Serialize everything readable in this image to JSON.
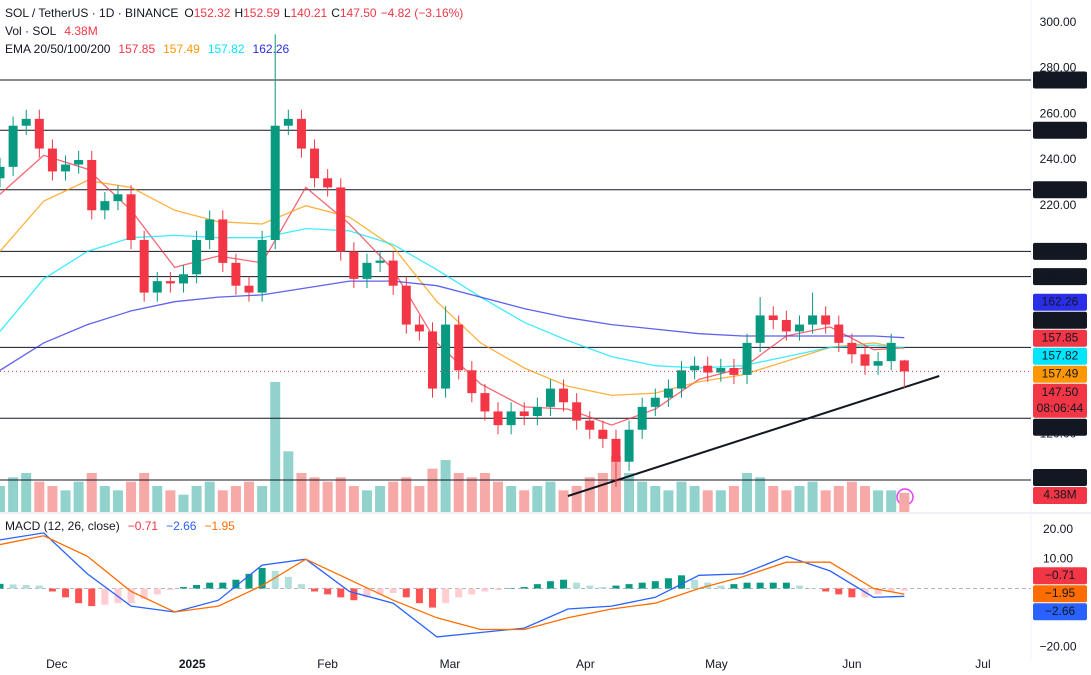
{
  "chart_data": [
    {
      "type": "candlestick",
      "title": "SOL / TetherUS · 1D · BINANCE",
      "ohlc_legend": [
        {
          "label": "O",
          "value": "152.32"
        },
        {
          "label": "H",
          "value": "152.59"
        },
        {
          "label": "L",
          "value": "140.21"
        },
        {
          "label": "C",
          "value": "147.50"
        },
        {
          "value": "−4.82 (−3.16%)"
        }
      ],
      "volume_legend": {
        "label": "Vol · SOL",
        "value": "4.38M"
      },
      "ema_legend": {
        "label": "EMA 20/50/100/200"
      },
      "up_color": "#089981",
      "down_color": "#f23645",
      "x": [
        0,
        3,
        6,
        9,
        12,
        15,
        18,
        21,
        24,
        27,
        30,
        33,
        36,
        39,
        42,
        45,
        48,
        51,
        54,
        57,
        60,
        63,
        66,
        69,
        72,
        75,
        78,
        81,
        84,
        87,
        90,
        93,
        96,
        99,
        102,
        105,
        108,
        111,
        114,
        117,
        120,
        123,
        126,
        129,
        132,
        135,
        138,
        141,
        144,
        147,
        150,
        153,
        156,
        159,
        162,
        165,
        168,
        171,
        174,
        177,
        180,
        183,
        186,
        189,
        192,
        195,
        198,
        201,
        204,
        207
      ],
      "open": [
        232,
        237,
        255,
        258,
        245,
        235,
        238,
        240,
        218,
        222,
        225,
        205,
        182,
        187,
        186,
        190,
        205,
        214,
        195,
        185,
        182,
        205,
        255,
        258,
        245,
        232,
        228,
        200,
        188,
        195,
        196,
        185,
        168,
        165,
        140,
        168,
        148,
        138,
        130,
        124,
        130,
        128,
        132,
        140,
        134,
        126,
        122,
        118,
        108,
        122,
        132,
        136,
        140,
        148,
        150,
        147,
        149,
        146,
        160,
        172,
        170,
        165,
        168,
        172,
        168,
        160,
        155,
        150,
        152,
        152.32
      ],
      "high": [
        241,
        259,
        262,
        262,
        249,
        242,
        244,
        244,
        226,
        229,
        229,
        209,
        191,
        191,
        194,
        209,
        218,
        218,
        199,
        189,
        209,
        295,
        262,
        262,
        249,
        236,
        232,
        204,
        199,
        200,
        200,
        189,
        172,
        169,
        176,
        172,
        152,
        142,
        134,
        134,
        134,
        136,
        144,
        144,
        138,
        130,
        126,
        122,
        126,
        136,
        140,
        144,
        152,
        154,
        154,
        153,
        153,
        164,
        180,
        176,
        174,
        172,
        182,
        176,
        172,
        164,
        159,
        156,
        164,
        152.59
      ],
      "low": [
        228,
        233,
        251,
        241,
        231,
        231,
        234,
        214,
        214,
        218,
        201,
        178,
        178,
        182,
        182,
        186,
        201,
        191,
        181,
        178,
        178,
        201,
        251,
        241,
        228,
        224,
        196,
        184,
        184,
        191,
        181,
        164,
        161,
        136,
        136,
        144,
        134,
        126,
        120,
        120,
        124,
        124,
        128,
        130,
        122,
        118,
        114,
        97,
        104,
        118,
        128,
        132,
        136,
        144,
        143,
        143,
        142,
        142,
        156,
        166,
        161,
        161,
        164,
        164,
        156,
        151,
        146,
        146,
        148,
        140.21
      ],
      "close": [
        237,
        255,
        258,
        245,
        235,
        238,
        240,
        218,
        222,
        225,
        205,
        182,
        187,
        186,
        190,
        205,
        214,
        195,
        185,
        182,
        205,
        255,
        258,
        245,
        232,
        228,
        200,
        188,
        195,
        196,
        185,
        168,
        165,
        140,
        168,
        148,
        138,
        130,
        124,
        130,
        128,
        132,
        140,
        134,
        126,
        122,
        118,
        108,
        122,
        132,
        136,
        140,
        148,
        150,
        147,
        149,
        146,
        160,
        172,
        170,
        165,
        168,
        172,
        168,
        160,
        155,
        150,
        152,
        160,
        147.5
      ],
      "volume": {
        "up_color": "#92d2cc",
        "down_color": "#f7a9a7",
        "values": [
          6,
          8,
          9,
          7,
          6,
          5,
          7,
          9,
          6,
          5,
          7,
          9,
          6,
          5,
          4,
          6,
          7,
          5,
          6,
          7,
          6,
          30,
          14,
          9,
          8,
          7,
          8,
          6,
          5,
          6,
          7,
          8,
          6,
          10,
          12,
          9,
          8,
          9,
          7,
          6,
          5,
          6,
          7,
          5,
          6,
          8,
          9,
          13,
          9,
          7,
          6,
          5,
          7,
          6,
          5,
          5,
          6,
          9,
          8,
          6,
          5,
          6,
          7,
          5,
          6,
          7,
          6,
          5,
          5,
          4.38
        ]
      },
      "ema": [
        {
          "color": "#f23645",
          "label": "157.85",
          "x": [
            0,
            10,
            20,
            30,
            40,
            50,
            60,
            70,
            80,
            90,
            100,
            110,
            120,
            130,
            140,
            150,
            160,
            170,
            180,
            190,
            200,
            207
          ],
          "values": [
            225,
            242,
            236,
            218,
            193,
            198,
            195,
            228,
            212,
            192,
            160,
            142,
            132,
            131,
            124,
            131,
            144,
            149,
            163,
            167,
            157,
            157.85
          ]
        },
        {
          "color": "#ff9800",
          "label": "157.49",
          "x": [
            0,
            10,
            20,
            30,
            40,
            50,
            60,
            70,
            80,
            90,
            100,
            110,
            120,
            130,
            140,
            150,
            160,
            170,
            180,
            190,
            200,
            207
          ],
          "values": [
            200,
            222,
            231,
            228,
            218,
            213,
            212,
            220,
            215,
            202,
            178,
            160,
            149,
            141,
            137,
            138,
            143,
            146,
            152,
            158,
            160,
            157.49
          ]
        },
        {
          "color": "#00e5ff",
          "label": "157.82",
          "x": [
            0,
            10,
            20,
            30,
            40,
            50,
            60,
            70,
            80,
            90,
            100,
            110,
            120,
            130,
            140,
            150,
            160,
            170,
            180,
            190,
            200,
            207
          ],
          "values": [
            165,
            188,
            200,
            206,
            207,
            206,
            206,
            210,
            209,
            203,
            192,
            180,
            169,
            161,
            154,
            150,
            149,
            150,
            154,
            158,
            159,
            157.82
          ]
        },
        {
          "color": "#2a2ee8",
          "label": "162.26",
          "x": [
            0,
            10,
            20,
            30,
            40,
            50,
            60,
            70,
            80,
            90,
            100,
            110,
            120,
            130,
            140,
            150,
            160,
            170,
            180,
            190,
            200,
            207
          ],
          "values": [
            148,
            160,
            168,
            174,
            178,
            180,
            181,
            184,
            187,
            187,
            185,
            180,
            175,
            171,
            168,
            166,
            164,
            163,
            163,
            163,
            163,
            162.26
          ]
        }
      ],
      "levels": [
        {
          "value": 275,
          "label": "275.00"
        },
        {
          "value": 253,
          "label": "253.00"
        },
        {
          "value": 227,
          "label": "227.00"
        },
        {
          "value": 200,
          "label": "200.00"
        },
        {
          "value": 189,
          "label": "189.00"
        },
        {
          "value": 158,
          "label": "158.00"
        },
        {
          "value": 127,
          "label": "127.00"
        },
        {
          "value": 100,
          "label": "100.00"
        }
      ],
      "level_color": "#131722",
      "last_price": {
        "value": 147.5,
        "label": "147.50",
        "countdown": "08:06:44",
        "color": "#f23645"
      },
      "trendline": {
        "color": "#131722",
        "x": [
          130,
          215
        ],
        "values": [
          93,
          145.5
        ]
      },
      "xlim": [
        0,
        236
      ],
      "xticks": [
        {
          "value": 13,
          "label": "Dec"
        },
        {
          "value": 44,
          "label": "2025"
        },
        {
          "value": 75,
          "label": "Feb"
        },
        {
          "value": 103,
          "label": "Mar"
        },
        {
          "value": 134,
          "label": "Apr"
        },
        {
          "value": 164,
          "label": "May"
        },
        {
          "value": 195,
          "label": "Jun"
        },
        {
          "value": 225,
          "label": "Jul"
        }
      ],
      "ylim": [
        86,
        310
      ],
      "yticks": [
        {
          "value": 300,
          "label": "300.00"
        },
        {
          "value": 280,
          "label": "280.00"
        },
        {
          "value": 260,
          "label": "260.00"
        },
        {
          "value": 240,
          "label": "240.00"
        },
        {
          "value": 220,
          "label": "220.00"
        },
        {
          "value": 120,
          "label": "120.00"
        }
      ]
    },
    {
      "type": "macd",
      "title": "MACD (12, 26, close)",
      "xlim": [
        0,
        236
      ],
      "ylim": [
        -24.4,
        25.1
      ],
      "yticks": [
        {
          "value": 20,
          "label": "20.00"
        },
        {
          "value": 10,
          "label": "10.00"
        },
        {
          "value": -20,
          "label": "−20.00"
        }
      ],
      "histogram": {
        "label": "−0.71",
        "color": "#f23645",
        "up_color": "#089981",
        "up_light": "#b2dfdb",
        "down_color": "#ff5252",
        "down_light": "#ffcdd2",
        "x": [
          0,
          3,
          6,
          9,
          12,
          15,
          18,
          21,
          24,
          27,
          30,
          33,
          36,
          39,
          42,
          45,
          48,
          51,
          54,
          57,
          60,
          63,
          66,
          69,
          72,
          75,
          78,
          81,
          84,
          87,
          90,
          93,
          96,
          99,
          102,
          105,
          108,
          111,
          114,
          117,
          120,
          123,
          126,
          129,
          132,
          135,
          138,
          141,
          144,
          147,
          150,
          153,
          156,
          159,
          162,
          165,
          168,
          171,
          174,
          177,
          180,
          183,
          186,
          189,
          192,
          195,
          198,
          201,
          204,
          207
        ],
        "values": [
          1.6,
          1.4,
          1.2,
          1,
          -1,
          -3,
          -5,
          -6,
          -5.5,
          -5,
          -5,
          -3.5,
          -2,
          -0.5,
          0.5,
          1.2,
          2,
          2,
          3,
          5,
          7,
          6,
          4,
          1.5,
          -1,
          -2,
          -3,
          -4,
          -3,
          -2,
          -1.5,
          -3,
          -5,
          -6.5,
          -5,
          -3,
          -2,
          -1,
          -0.5,
          0,
          0.5,
          1.5,
          2.5,
          3,
          2,
          1,
          0.5,
          1,
          1.5,
          2,
          2.5,
          3.5,
          4.5,
          3,
          2,
          1,
          1.5,
          2,
          2,
          2,
          2,
          1,
          0,
          -1,
          -2,
          -3,
          -3,
          -2,
          -1,
          -0.71
        ]
      },
      "macd": {
        "label": "−2.66",
        "color": "#2962ff",
        "x": [
          0,
          10,
          20,
          30,
          40,
          50,
          60,
          70,
          80,
          90,
          100,
          110,
          120,
          130,
          140,
          150,
          160,
          170,
          180,
          190,
          200,
          207
        ],
        "values": [
          16.6,
          19,
          5,
          -6,
          -8,
          -4,
          8,
          10,
          -1,
          -5,
          -16.5,
          -15,
          -13.5,
          -7,
          -6,
          -3,
          4.5,
          5,
          11,
          6,
          -3,
          -2.66
        ]
      },
      "signal": {
        "label": "−1.95",
        "color": "#ff6d00",
        "x": [
          0,
          10,
          20,
          30,
          40,
          50,
          60,
          70,
          80,
          90,
          100,
          110,
          120,
          130,
          140,
          150,
          160,
          170,
          180,
          190,
          200,
          207
        ],
        "values": [
          15,
          18,
          11,
          -1,
          -8,
          -6,
          1,
          10,
          3,
          -4,
          -10,
          -14,
          -14,
          -10,
          -7,
          -5,
          0,
          4,
          9,
          9,
          0,
          -1.95
        ]
      }
    }
  ]
}
